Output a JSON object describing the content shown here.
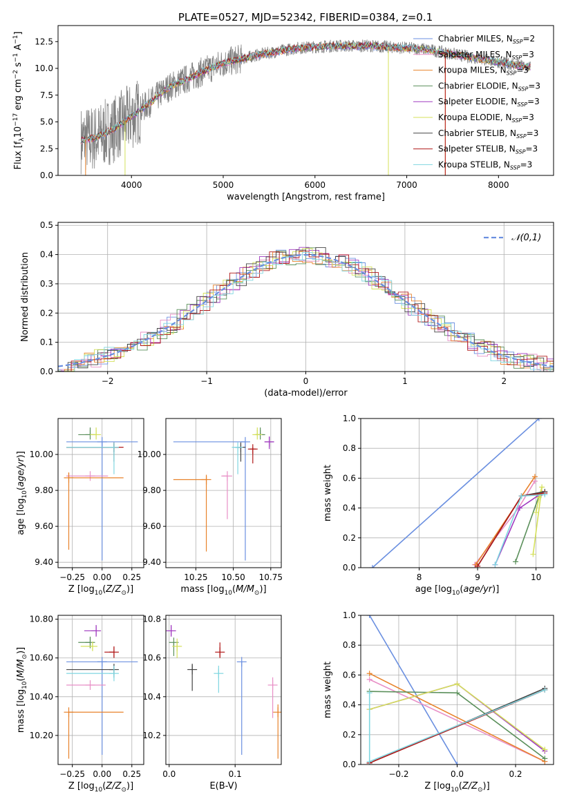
{
  "figure": {
    "title": "PLATE=0527, MJD=52342, FIBERID=0384, z=0.1"
  },
  "colors": {
    "Chabrier MILES": "#6a8fe0",
    "Salpeter MILES": "#e88fc6",
    "Kroupa MILES": "#e8822a",
    "Chabrier ELODIE": "#5a8f5a",
    "Salpeter ELODIE": "#a03ac0",
    "Kroupa ELODIE": "#d4e05a",
    "Chabrier STELIB": "#444444",
    "Salpeter STELIB": "#b01818",
    "Kroupa STELIB": "#7fd6e0",
    "data": "#808080"
  },
  "chart_data": [
    {
      "type": "line",
      "panel": "spectrum",
      "xlabel": "wavelength [Angstrom, rest frame]",
      "ylabel": "Flux [f_λ 10^-17 erg cm^-2 s^-1 A^-1]",
      "xlim": [
        3200,
        8600
      ],
      "ylim": [
        0,
        14
      ],
      "xticks": [
        4000,
        5000,
        6000,
        7000,
        8000
      ],
      "yticks": [
        0.0,
        2.5,
        5.0,
        7.5,
        10.0,
        12.5
      ],
      "legend_loc": "right",
      "legend": [
        "Chabrier MILES, N_SSP=2",
        "Salpeter MILES, N_SSP=3",
        "Kroupa MILES, N_SSP=3",
        "Chabrier ELODIE, N_SSP=3",
        "Salpeter ELODIE, N_SSP=3",
        "Kroupa ELODIE, N_SSP=3",
        "Chabrier STELIB, N_SSP=3",
        "Salpeter STELIB, N_SSP=3",
        "Kroupa STELIB, N_SSP=3"
      ],
      "continuum": {
        "x": [
          3450,
          3600,
          3800,
          4000,
          4200,
          4400,
          4600,
          4800,
          5000,
          5200,
          5400,
          5600,
          5800,
          6000,
          6200,
          6400,
          6600,
          6800,
          7000,
          7200,
          7400,
          7600,
          7800,
          8000,
          8200,
          8350
        ],
        "y": [
          3.3,
          3.5,
          4.3,
          5.5,
          6.8,
          8.2,
          9.0,
          9.8,
          10.5,
          10.9,
          11.3,
          11.6,
          11.9,
          12.0,
          12.1,
          12.1,
          12.1,
          12.0,
          11.9,
          11.8,
          11.5,
          11.2,
          10.9,
          10.6,
          10.3,
          10.1
        ]
      }
    },
    {
      "type": "step",
      "panel": "residuals",
      "xlabel": "(data-model)/error",
      "ylabel": "Normed distribution",
      "xlim": [
        -2.5,
        2.5
      ],
      "ylim": [
        0,
        0.51
      ],
      "xticks": [
        -2,
        -1,
        0,
        1,
        2
      ],
      "yticks": [
        0.0,
        0.1,
        0.2,
        0.3,
        0.4,
        0.5
      ],
      "legend": [
        "𝒩(0,1)"
      ],
      "legend_loc": "top-right",
      "reference_curve": "gaussian mean 0 sigma 1"
    },
    {
      "type": "scatter",
      "panel": "age-vs-Z",
      "xlabel": "Z [log10(Z/Z⊙)]",
      "ylabel": "age [log10(age/yr)]",
      "xlim": [
        -0.37,
        0.35
      ],
      "ylim": [
        9.37,
        10.2
      ],
      "xticks": [
        -0.25,
        0.0,
        0.25
      ],
      "yticks": [
        9.4,
        9.6,
        9.8,
        10.0
      ],
      "points": [
        {
          "model": "Chabrier MILES",
          "x": 0.0,
          "y": 10.07,
          "xerr": [
            0.3,
            0.3
          ],
          "yerr": [
            0.66,
            0.0
          ]
        },
        {
          "model": "Salpeter MILES",
          "x": -0.1,
          "y": 9.88,
          "xerr": [
            0.2,
            0.15
          ],
          "yerr": [
            0.0,
            0.0
          ]
        },
        {
          "model": "Kroupa MILES",
          "x": -0.28,
          "y": 9.87,
          "xerr": [
            0.0,
            0.46
          ],
          "yerr": [
            0.4,
            0.03
          ]
        },
        {
          "model": "Chabrier ELODIE",
          "x": -0.1,
          "y": 10.11,
          "xerr": [
            0.1,
            0.0
          ],
          "yerr": [
            0.0,
            0.04
          ]
        },
        {
          "model": "Kroupa ELODIE",
          "x": -0.05,
          "y": 10.11,
          "xerr": [
            0.05,
            0.0
          ],
          "yerr": [
            0.0,
            0.04
          ]
        },
        {
          "model": "Chabrier STELIB",
          "x": 0.1,
          "y": 10.04,
          "xerr": [
            0.4,
            0.0
          ],
          "yerr": [
            0.08,
            0.02
          ]
        },
        {
          "model": "Salpeter STELIB",
          "x": 0.1,
          "y": 10.04,
          "xerr": [
            0.4,
            0.08
          ],
          "yerr": [
            0.0,
            0.0
          ]
        },
        {
          "model": "Kroupa STELIB",
          "x": 0.1,
          "y": 10.04,
          "xerr": [
            0.4,
            0.0
          ],
          "yerr": [
            0.15,
            0.01
          ]
        }
      ]
    },
    {
      "type": "scatter",
      "panel": "age-vs-mass",
      "xlabel": "mass [log10(M/M⊙)]",
      "ylabel": "",
      "xlim": [
        10.05,
        10.82
      ],
      "ylim": [
        9.37,
        10.2
      ],
      "xticks": [
        10.25,
        10.5,
        10.75
      ],
      "yticks": [
        9.4,
        9.6,
        9.8,
        10.0
      ],
      "points": [
        {
          "model": "Chabrier MILES",
          "x": 10.58,
          "y": 10.07,
          "xerr": [
            0.48,
            0.0
          ],
          "yerr": [
            0.66,
            0.0
          ]
        },
        {
          "model": "Salpeter MILES",
          "x": 10.46,
          "y": 9.88,
          "xerr": [
            0.04,
            0.0
          ],
          "yerr": [
            0.24,
            0.0
          ]
        },
        {
          "model": "Kroupa MILES",
          "x": 10.32,
          "y": 9.86,
          "xerr": [
            0.22,
            0.0
          ],
          "yerr": [
            0.4,
            0.02
          ]
        },
        {
          "model": "Chabrier ELODIE",
          "x": 10.68,
          "y": 10.11,
          "xerr": [
            0.03,
            0.02
          ],
          "yerr": [
            0.0,
            0.04
          ]
        },
        {
          "model": "Salpeter ELODIE",
          "x": 10.74,
          "y": 10.07,
          "xerr": [
            0.03,
            0.03
          ],
          "yerr": [
            0.04,
            0.03
          ]
        },
        {
          "model": "Kroupa ELODIE",
          "x": 10.66,
          "y": 10.11,
          "xerr": [
            0.02,
            0.02
          ],
          "yerr": [
            0.0,
            0.04
          ]
        },
        {
          "model": "Chabrier STELIB",
          "x": 10.55,
          "y": 10.04,
          "xerr": [
            0.04,
            0.0
          ],
          "yerr": [
            0.08,
            0.02
          ]
        },
        {
          "model": "Salpeter STELIB",
          "x": 10.63,
          "y": 10.03,
          "xerr": [
            0.02,
            0.02
          ],
          "yerr": [
            0.08,
            0.01
          ]
        },
        {
          "model": "Kroupa STELIB",
          "x": 10.53,
          "y": 10.04,
          "xerr": [
            0.04,
            0.0
          ],
          "yerr": [
            0.15,
            0.0
          ]
        }
      ]
    },
    {
      "type": "line",
      "panel": "weight-vs-age",
      "xlabel": "age [log10(age/yr)]",
      "ylabel": "mass weight",
      "xlim": [
        7.0,
        10.3
      ],
      "ylim": [
        0.0,
        1.0
      ],
      "xticks": [
        8,
        9,
        10
      ],
      "yticks": [
        0.0,
        0.2,
        0.4,
        0.6,
        0.8,
        1.0
      ],
      "series": [
        {
          "model": "Chabrier MILES",
          "x": [
            7.2,
            10.05
          ],
          "y": [
            0.0,
            1.0
          ]
        },
        {
          "model": "Salpeter MILES",
          "x": [
            8.95,
            9.7,
            9.98
          ],
          "y": [
            0.02,
            0.4,
            0.58
          ]
        },
        {
          "model": "Kroupa MILES",
          "x": [
            8.97,
            9.98
          ],
          "y": [
            0.02,
            0.61
          ]
        },
        {
          "model": "Chabrier ELODIE",
          "x": [
            9.65,
            10.05
          ],
          "y": [
            0.04,
            0.48
          ]
        },
        {
          "model": "Salpeter ELODIE",
          "x": [
            9.3,
            9.72,
            10.1
          ],
          "y": [
            0.02,
            0.4,
            0.5
          ]
        },
        {
          "model": "Kroupa ELODIE",
          "x": [
            9.95,
            10.1,
            10.05,
            10.0
          ],
          "y": [
            0.09,
            0.54,
            0.47,
            0.37
          ]
        },
        {
          "model": "Chabrier STELIB",
          "x": [
            9.0,
            9.75,
            10.15
          ],
          "y": [
            0.01,
            0.48,
            0.51
          ]
        },
        {
          "model": "Salpeter STELIB",
          "x": [
            9.0,
            9.75,
            10.15
          ],
          "y": [
            0.01,
            0.48,
            0.5
          ]
        },
        {
          "model": "Kroupa STELIB",
          "x": [
            9.3,
            9.75,
            10.15
          ],
          "y": [
            0.02,
            0.48,
            0.49
          ]
        }
      ]
    },
    {
      "type": "scatter",
      "panel": "mass-vs-Z",
      "xlabel": "Z [log10(Z/Z⊙)]",
      "ylabel": "mass [log10(M/M⊙)]",
      "xlim": [
        -0.37,
        0.35
      ],
      "ylim": [
        10.05,
        10.82
      ],
      "xticks": [
        -0.25,
        0.0,
        0.25
      ],
      "yticks": [
        10.2,
        10.4,
        10.6,
        10.8
      ],
      "points": [
        {
          "model": "Chabrier MILES",
          "x": 0.0,
          "y": 10.58,
          "xerr": [
            0.3,
            0.3
          ],
          "yerr": [
            0.48,
            0.0
          ]
        },
        {
          "model": "Salpeter MILES",
          "x": -0.1,
          "y": 10.46,
          "xerr": [
            0.2,
            0.13
          ],
          "yerr": [
            0.0,
            0.0
          ]
        },
        {
          "model": "Kroupa MILES",
          "x": -0.28,
          "y": 10.32,
          "xerr": [
            0.0,
            0.46
          ],
          "yerr": [
            0.24,
            0.0
          ]
        },
        {
          "model": "Chabrier ELODIE",
          "x": -0.1,
          "y": 10.68,
          "xerr": [
            0.1,
            0.0
          ],
          "yerr": [
            0.03,
            0.03
          ]
        },
        {
          "model": "Salpeter ELODIE",
          "x": -0.05,
          "y": 10.74,
          "xerr": [
            0.1,
            0.0
          ],
          "yerr": [
            0.03,
            0.03
          ]
        },
        {
          "model": "Kroupa ELODIE",
          "x": -0.08,
          "y": 10.66,
          "xerr": [
            0.1,
            0.0
          ],
          "yerr": [
            0.02,
            0.02
          ]
        },
        {
          "model": "Chabrier STELIB",
          "x": 0.1,
          "y": 10.54,
          "xerr": [
            0.4,
            0.0
          ],
          "yerr": [
            0.04,
            0.03
          ]
        },
        {
          "model": "Salpeter STELIB",
          "x": 0.1,
          "y": 10.63,
          "xerr": [
            0.08,
            0.0
          ],
          "yerr": [
            0.03,
            0.03
          ]
        },
        {
          "model": "Kroupa STELIB",
          "x": 0.1,
          "y": 10.52,
          "xerr": [
            0.4,
            0.0
          ],
          "yerr": [
            0.04,
            0.04
          ]
        }
      ]
    },
    {
      "type": "scatter",
      "panel": "mass-vs-EBV",
      "xlabel": "E(B-V)",
      "ylabel": "",
      "xlim": [
        -0.005,
        0.17
      ],
      "ylim": [
        10.05,
        10.82
      ],
      "xticks": [
        0.0,
        0.1
      ],
      "yticks": [
        10.2,
        10.4,
        10.6,
        10.8
      ],
      "points": [
        {
          "model": "Chabrier MILES",
          "x": 0.11,
          "y": 10.58,
          "xerr": [
            0.0,
            0.0
          ],
          "yerr": [
            0.48,
            0.0
          ]
        },
        {
          "model": "Salpeter MILES",
          "x": 0.157,
          "y": 10.46,
          "xerr": [
            0.0,
            0.0
          ],
          "yerr": [
            0.17,
            0.04
          ]
        },
        {
          "model": "Kroupa MILES",
          "x": 0.165,
          "y": 10.32,
          "xerr": [
            0.0,
            0.0
          ],
          "yerr": [
            0.24,
            0.04
          ]
        },
        {
          "model": "Chabrier ELODIE",
          "x": 0.007,
          "y": 10.68,
          "xerr": [
            0.0,
            0.0
          ],
          "yerr": [
            0.07,
            0.0
          ]
        },
        {
          "model": "Salpeter ELODIE",
          "x": 0.003,
          "y": 10.74,
          "xerr": [
            0.0,
            0.0
          ],
          "yerr": [
            0.03,
            0.03
          ]
        },
        {
          "model": "Kroupa ELODIE",
          "x": 0.012,
          "y": 10.66,
          "xerr": [
            0.0,
            0.0
          ],
          "yerr": [
            0.06,
            0.04
          ]
        },
        {
          "model": "Chabrier STELIB",
          "x": 0.035,
          "y": 10.54,
          "xerr": [
            0.0,
            0.0
          ],
          "yerr": [
            0.11,
            0.03
          ]
        },
        {
          "model": "Salpeter STELIB",
          "x": 0.077,
          "y": 10.63,
          "xerr": [
            0.0,
            0.0
          ],
          "yerr": [
            0.03,
            0.05
          ]
        },
        {
          "model": "Kroupa STELIB",
          "x": 0.075,
          "y": 10.52,
          "xerr": [
            0.0,
            0.0
          ],
          "yerr": [
            0.1,
            0.04
          ]
        }
      ]
    },
    {
      "type": "line",
      "panel": "weight-vs-Z",
      "xlabel": "Z [log10(Z/Z⊙)]",
      "ylabel": "mass weight",
      "xlim": [
        -0.33,
        0.33
      ],
      "ylim": [
        0.0,
        1.0
      ],
      "xticks": [
        -0.2,
        0.0,
        0.2
      ],
      "yticks": [
        0.0,
        0.2,
        0.4,
        0.6,
        0.8,
        1.0
      ],
      "series": [
        {
          "model": "Chabrier MILES",
          "x": [
            -0.3,
            0.0
          ],
          "y": [
            1.0,
            0.0
          ]
        },
        {
          "model": "Salpeter MILES",
          "x": [
            -0.3,
            0.3
          ],
          "y": [
            0.57,
            0.02
          ]
        },
        {
          "model": "Kroupa MILES",
          "x": [
            -0.3,
            0.3
          ],
          "y": [
            0.61,
            0.02
          ]
        },
        {
          "model": "Chabrier ELODIE",
          "x": [
            -0.3,
            0.0,
            0.3
          ],
          "y": [
            0.49,
            0.48,
            0.04
          ]
        },
        {
          "model": "Salpeter ELODIE",
          "x": [
            -0.3,
            0.0,
            0.3
          ],
          "y": [
            0.37,
            0.54,
            0.09
          ]
        },
        {
          "model": "Kroupa ELODIE",
          "x": [
            -0.3,
            0.0,
            0.3
          ],
          "y": [
            0.37,
            0.54,
            0.1
          ]
        },
        {
          "model": "Chabrier STELIB",
          "x": [
            -0.3,
            0.3
          ],
          "y": [
            0.01,
            0.51
          ]
        },
        {
          "model": "Salpeter STELIB",
          "x": [
            -0.3,
            0.3
          ],
          "y": [
            0.01,
            0.5
          ]
        },
        {
          "model": "Kroupa STELIB",
          "x": [
            -0.3,
            -0.3,
            0.3
          ],
          "y": [
            0.48,
            0.02,
            0.5
          ]
        }
      ]
    }
  ]
}
